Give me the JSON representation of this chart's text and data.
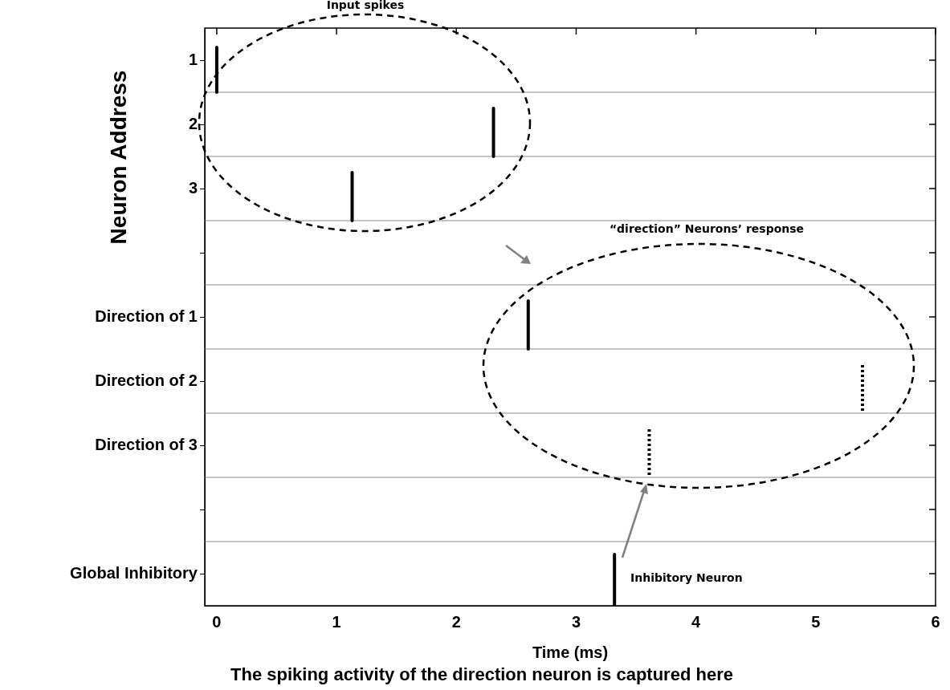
{
  "chart_data": {
    "type": "line",
    "xlabel": "Time (ms)",
    "ylabel": "Neuron Address",
    "xlim": [
      -0.1,
      6
    ],
    "xticks": [
      0,
      1,
      2,
      3,
      4,
      5,
      6
    ],
    "ylim": [
      9,
      0
    ],
    "yticks": [
      {
        "value": 0.5,
        "label": "1"
      },
      {
        "value": 1.5,
        "label": "2"
      },
      {
        "value": 2.5,
        "label": "3"
      },
      {
        "value": 3.5,
        "label": null
      },
      {
        "value": 4.5,
        "label": "Direction of 1"
      },
      {
        "value": 5.5,
        "label": "Direction of 2"
      },
      {
        "value": 6.5,
        "label": "Direction of 3"
      },
      {
        "value": 7.5,
        "label": null
      },
      {
        "value": 8.5,
        "label": "Global Inhibitory"
      }
    ],
    "marker": "none",
    "legend": false,
    "series": [
      {
        "color": "#000000",
        "line_style": "solid",
        "x": [
          0,
          0
        ],
        "values": [
          0.3,
          1
        ]
      },
      {
        "color": "#000000",
        "line_style": "solid",
        "x": [
          2.31,
          2.31
        ],
        "values": [
          1.25,
          2
        ]
      },
      {
        "color": "#000000",
        "line_style": "solid",
        "x": [
          1.13,
          1.13
        ],
        "values": [
          2.25,
          3
        ]
      },
      {
        "color": "#000000",
        "line_style": "solid",
        "x": [
          2.6,
          2.6
        ],
        "values": [
          4.25,
          5
        ]
      },
      {
        "color": "#000000",
        "line_style": "dotted",
        "x": [
          5.39,
          5.39
        ],
        "values": [
          5.25,
          6
        ]
      },
      {
        "color": "#000000",
        "line_style": "dotted",
        "x": [
          3.61,
          3.61
        ],
        "values": [
          6.25,
          7
        ]
      },
      {
        "color": "#000000",
        "line_style": "solid",
        "x": [
          3.32,
          3.32
        ],
        "values": [
          8.2,
          9
        ]
      }
    ],
    "ref_lines": [
      {
        "axis": "y",
        "value": 1,
        "color": "#b0b0b0"
      },
      {
        "axis": "y",
        "value": 2,
        "color": "#b0b0b0"
      },
      {
        "axis": "y",
        "value": 3,
        "color": "#b0b0b0"
      },
      {
        "axis": "y",
        "value": 4,
        "color": "#b0b0b0"
      },
      {
        "axis": "y",
        "value": 5,
        "color": "#b0b0b0"
      },
      {
        "axis": "y",
        "value": 6,
        "color": "#b0b0b0"
      },
      {
        "axis": "y",
        "value": 7,
        "color": "#b0b0b0"
      },
      {
        "axis": "y",
        "value": 8,
        "color": "#b0b0b0"
      }
    ],
    "annotations": [
      "Input spikes",
      "“direction” Neurons’ response",
      "Inhibitory Neuron",
      "The spiking activity of the direction neuron is captured here"
    ]
  }
}
